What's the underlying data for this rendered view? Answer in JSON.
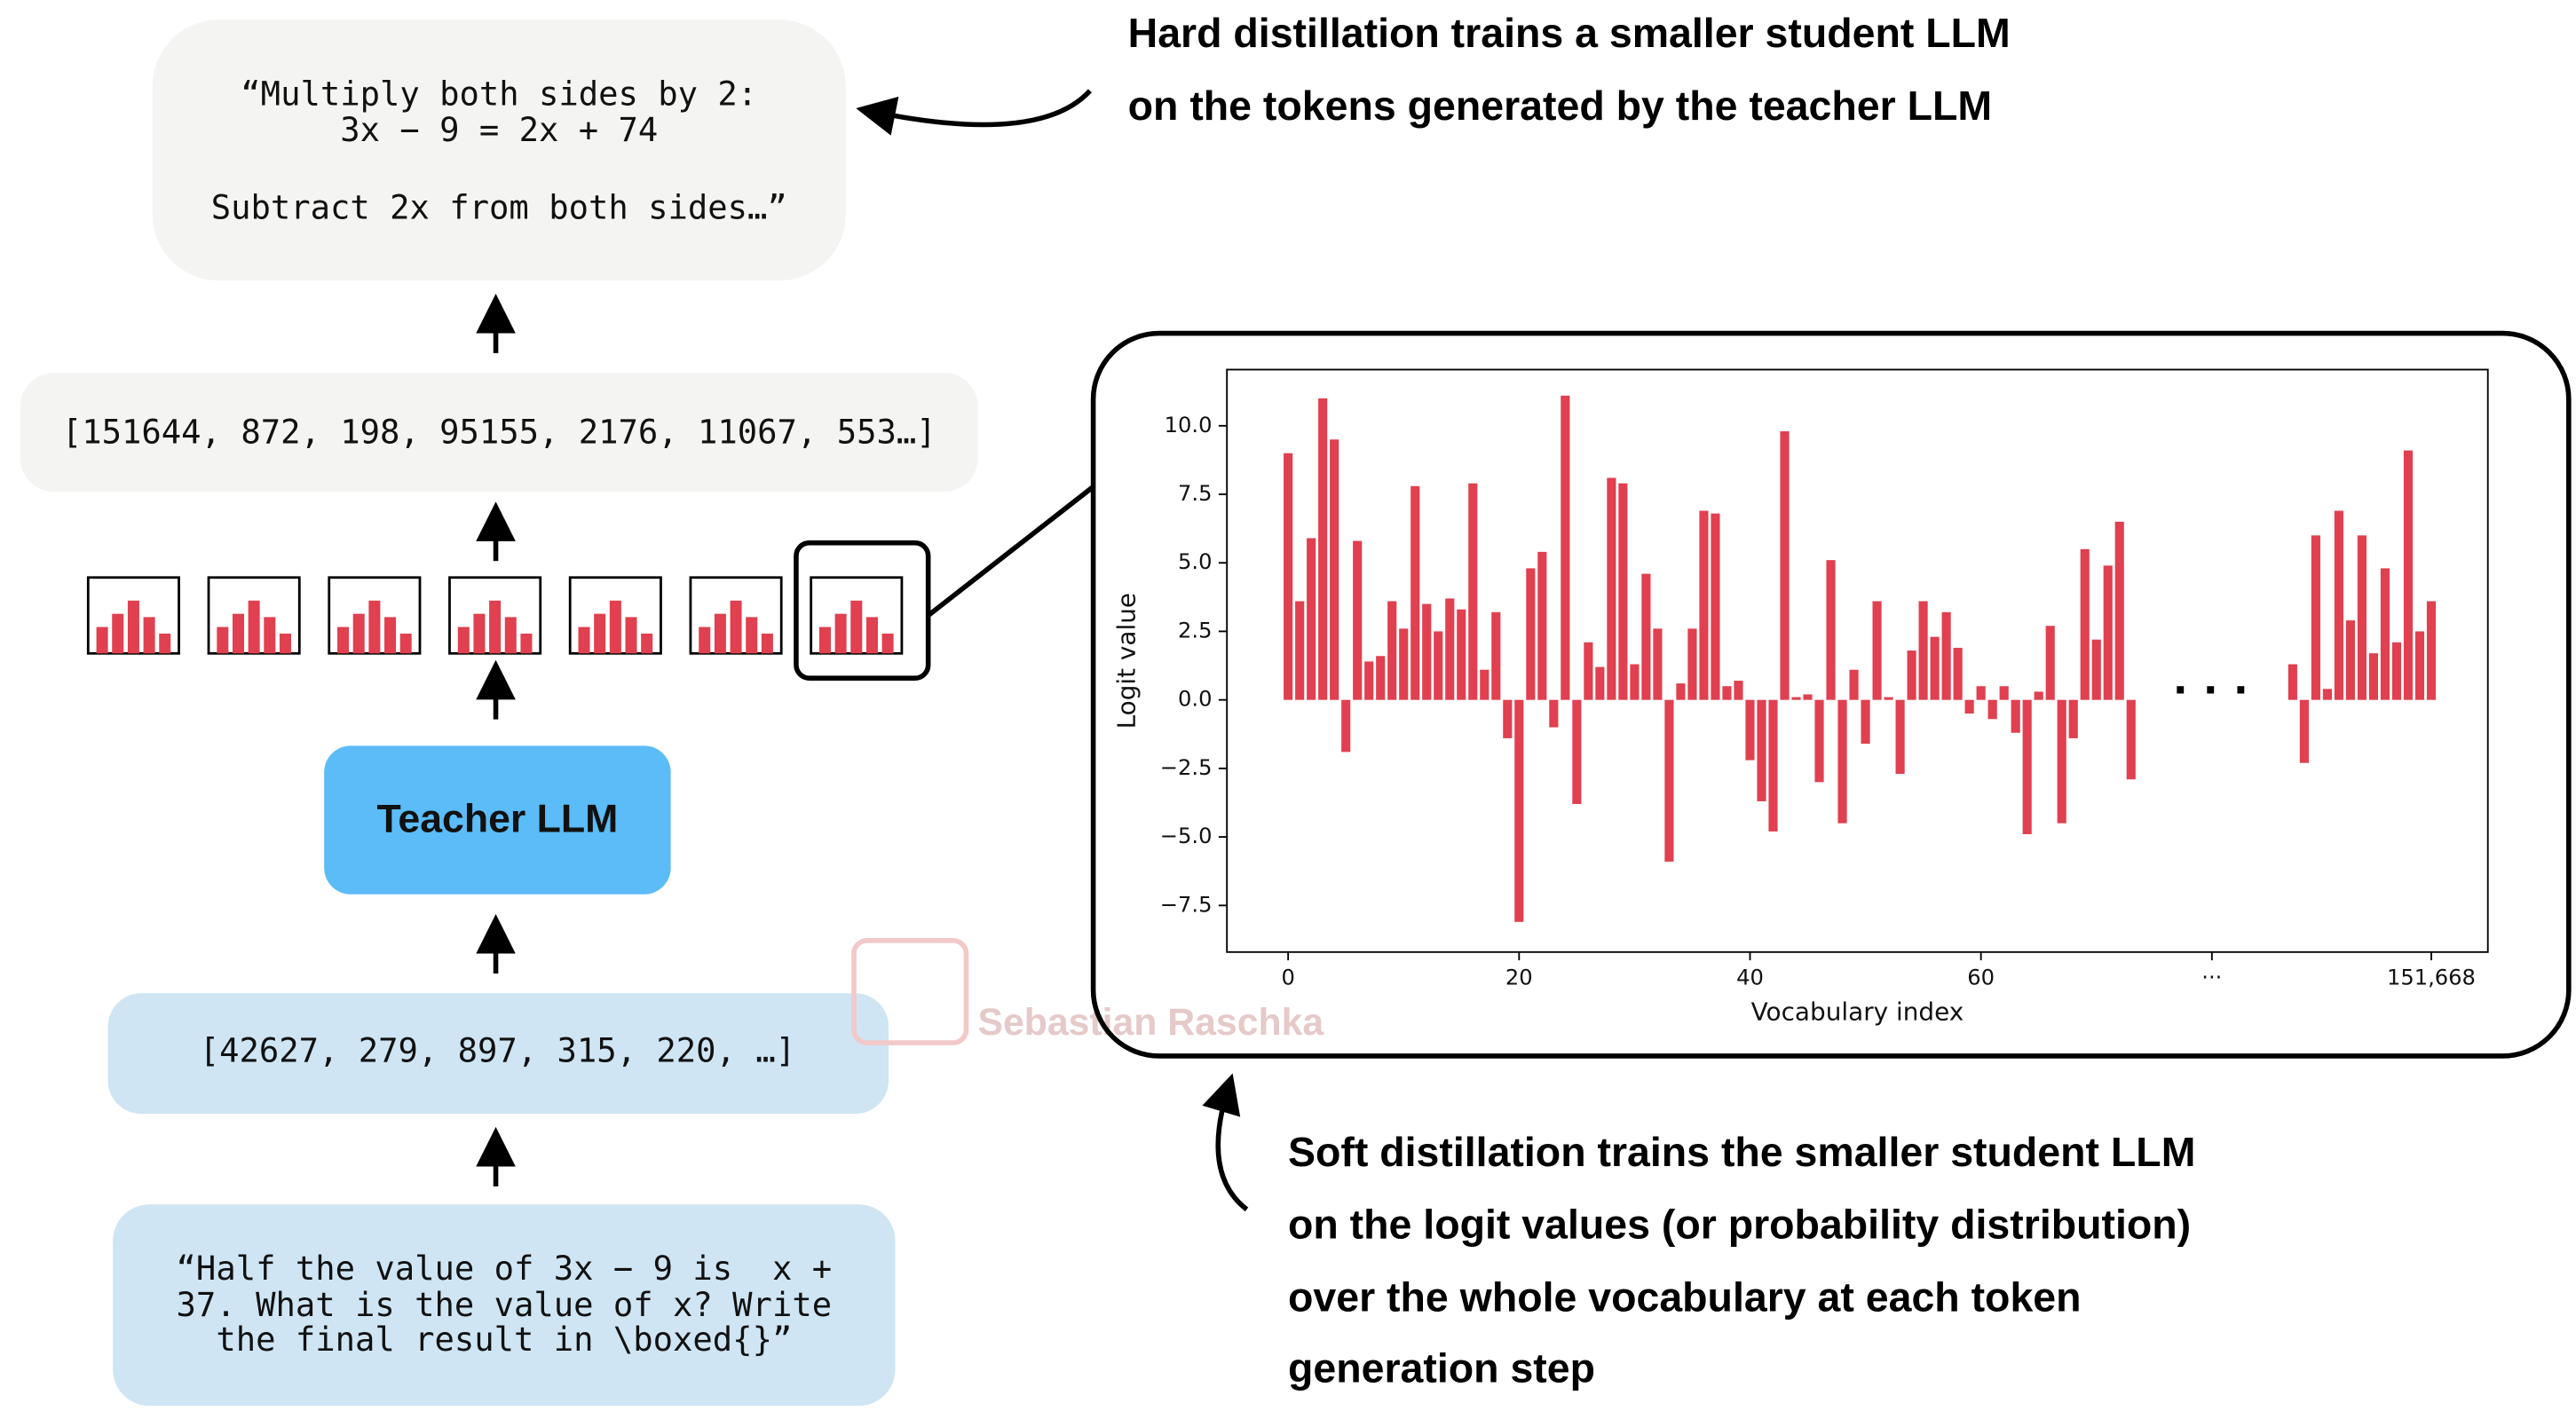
{
  "output_text": [
    "“Multiply both sides by 2:",
    "3x − 9 = 2x + 74",
    "Subtract 2x from both sides…”"
  ],
  "output_tokens": "[151644, 872, 198, 95155, 2176, 11067, 553…]",
  "model": "Teacher LLM",
  "input_tokens": "[42627, 279, 897, 315, 220, …]",
  "prompt": [
    "“Half the value of 3x − 9 is  x +",
    "37. What is the value of x? Write",
    "the final result in \\boxed{}”"
  ],
  "hard_note": [
    "Hard distillation trains a smaller student LLM",
    "on the tokens generated by the teacher LLM"
  ],
  "soft_note": [
    "Soft distillation trains the smaller student LLM",
    "on the logit values (or probability distribution)",
    "over the whole vocabulary at each token",
    "generation step"
  ],
  "watermark": "Sebastian Raschka",
  "chart_data": {
    "type": "bar",
    "xlabel": "Vocabulary index",
    "ylabel": "Logit value",
    "annotation": "· · ·",
    "color": "#e0404f",
    "categories": [
      "0",
      null,
      null,
      null,
      null,
      null,
      null,
      null,
      null,
      null,
      null,
      null,
      null,
      null,
      null,
      null,
      null,
      null,
      null,
      null,
      "20",
      null,
      null,
      null,
      null,
      null,
      null,
      null,
      null,
      null,
      null,
      null,
      null,
      null,
      null,
      null,
      null,
      null,
      null,
      null,
      "40",
      null,
      null,
      null,
      null,
      null,
      null,
      null,
      null,
      null,
      null,
      null,
      null,
      null,
      null,
      null,
      null,
      null,
      null,
      null,
      "60",
      null,
      null,
      null,
      null,
      null,
      null,
      null,
      null,
      null,
      null,
      null,
      null,
      null,
      null,
      null,
      null,
      null,
      null,
      null,
      "···",
      null,
      null,
      null,
      null,
      null,
      null,
      null,
      null,
      null,
      null,
      null,
      null,
      null,
      null,
      null,
      null,
      null,
      null,
      "151,668"
    ],
    "values": [
      9.0,
      3.6,
      5.9,
      11.0,
      9.5,
      -1.9,
      5.8,
      1.4,
      1.6,
      3.6,
      2.6,
      7.8,
      3.5,
      2.5,
      3.7,
      3.3,
      7.9,
      1.1,
      3.2,
      -1.4,
      -8.1,
      4.8,
      5.4,
      -1.0,
      11.1,
      -3.8,
      2.1,
      1.2,
      8.1,
      7.9,
      1.3,
      4.6,
      2.6,
      -5.9,
      0.6,
      2.6,
      6.9,
      6.8,
      0.5,
      0.7,
      -2.2,
      -3.7,
      -4.8,
      9.8,
      0.1,
      0.2,
      -3.0,
      5.1,
      -4.5,
      1.1,
      -1.6,
      3.6,
      0.1,
      -2.7,
      1.8,
      3.6,
      2.3,
      3.2,
      1.9,
      -0.5,
      0.5,
      -0.7,
      0.5,
      -1.2,
      -4.9,
      0.3,
      2.7,
      -4.5,
      -1.4,
      5.5,
      2.2,
      4.9,
      6.5,
      -2.9,
      null,
      null,
      null,
      null,
      null,
      null,
      null,
      null,
      null,
      null,
      null,
      null,
      null,
      1.3,
      -2.3,
      6.0,
      0.4,
      6.9,
      2.9,
      6.0,
      1.7,
      4.8,
      2.1,
      9.1,
      2.5,
      3.6
    ],
    "ylim": [
      -9.2,
      12.05
    ],
    "yticks": [
      {
        "value": -7.5,
        "label": "−7.5"
      },
      {
        "value": -5,
        "label": "−5.0"
      },
      {
        "value": -2.5,
        "label": "−2.5"
      },
      {
        "value": 0,
        "label": "0.0"
      },
      {
        "value": 2.5,
        "label": "2.5"
      },
      {
        "value": 5,
        "label": "5.0"
      },
      {
        "value": 7.5,
        "label": "7.5"
      },
      {
        "value": 10,
        "label": "10.0"
      }
    ]
  }
}
